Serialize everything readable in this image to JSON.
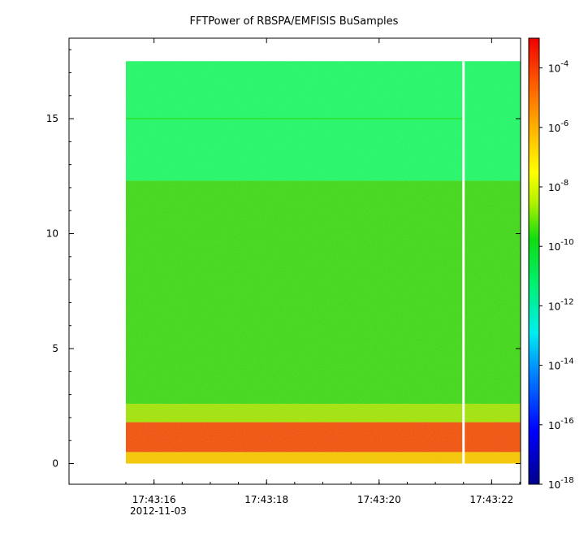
{
  "chart_data": {
    "type": "heatmap",
    "title": "FFTPower of RBSPA/EMFISIS  BuSamples",
    "xlabel": "",
    "ylabel": "",
    "x_tick_labels": [
      "17:43:16",
      "17:43:18",
      "17:43:20",
      "17:43:22"
    ],
    "x_date_label": "2012-11-03",
    "x_range": [
      "17:43:15.5",
      "17:43:23.0"
    ],
    "data_x_range": [
      "17:43:15.5",
      "17:43:23.0"
    ],
    "data_gap_at": "17:43:21.5",
    "y_ticks": [
      0,
      5,
      10,
      15
    ],
    "ylim": [
      -0.9,
      18.5
    ],
    "data_y_range": [
      0,
      17.5
    ],
    "colorbar": {
      "scale": "log",
      "range": [
        "1e-18",
        "1e-3"
      ],
      "tick_exponents": [
        -18,
        -16,
        -14,
        -12,
        -10,
        -8,
        -6,
        -4
      ],
      "tick_base": "10",
      "colormap": "rainbow (blue to red)"
    },
    "bands": [
      {
        "y_from": 0,
        "y_to": 0.5,
        "power": "1e-7",
        "color": "#f2c200"
      },
      {
        "y_from": 0.5,
        "y_to": 1.8,
        "power": "1e-5",
        "color": "#ee4a0c"
      },
      {
        "y_from": 1.8,
        "y_to": 2.6,
        "power": "1e-9",
        "color": "#9ce00a"
      },
      {
        "y_from": 2.6,
        "y_to": 12.3,
        "power": "1e-10",
        "color": "#38d418"
      },
      {
        "y_from": 12.3,
        "y_to": 17.5,
        "power": "1e-11",
        "color": "#18f46a"
      }
    ],
    "lines": [
      {
        "y": 15,
        "power": "1e-10",
        "color": "#2ce63a"
      }
    ],
    "grid": false
  }
}
